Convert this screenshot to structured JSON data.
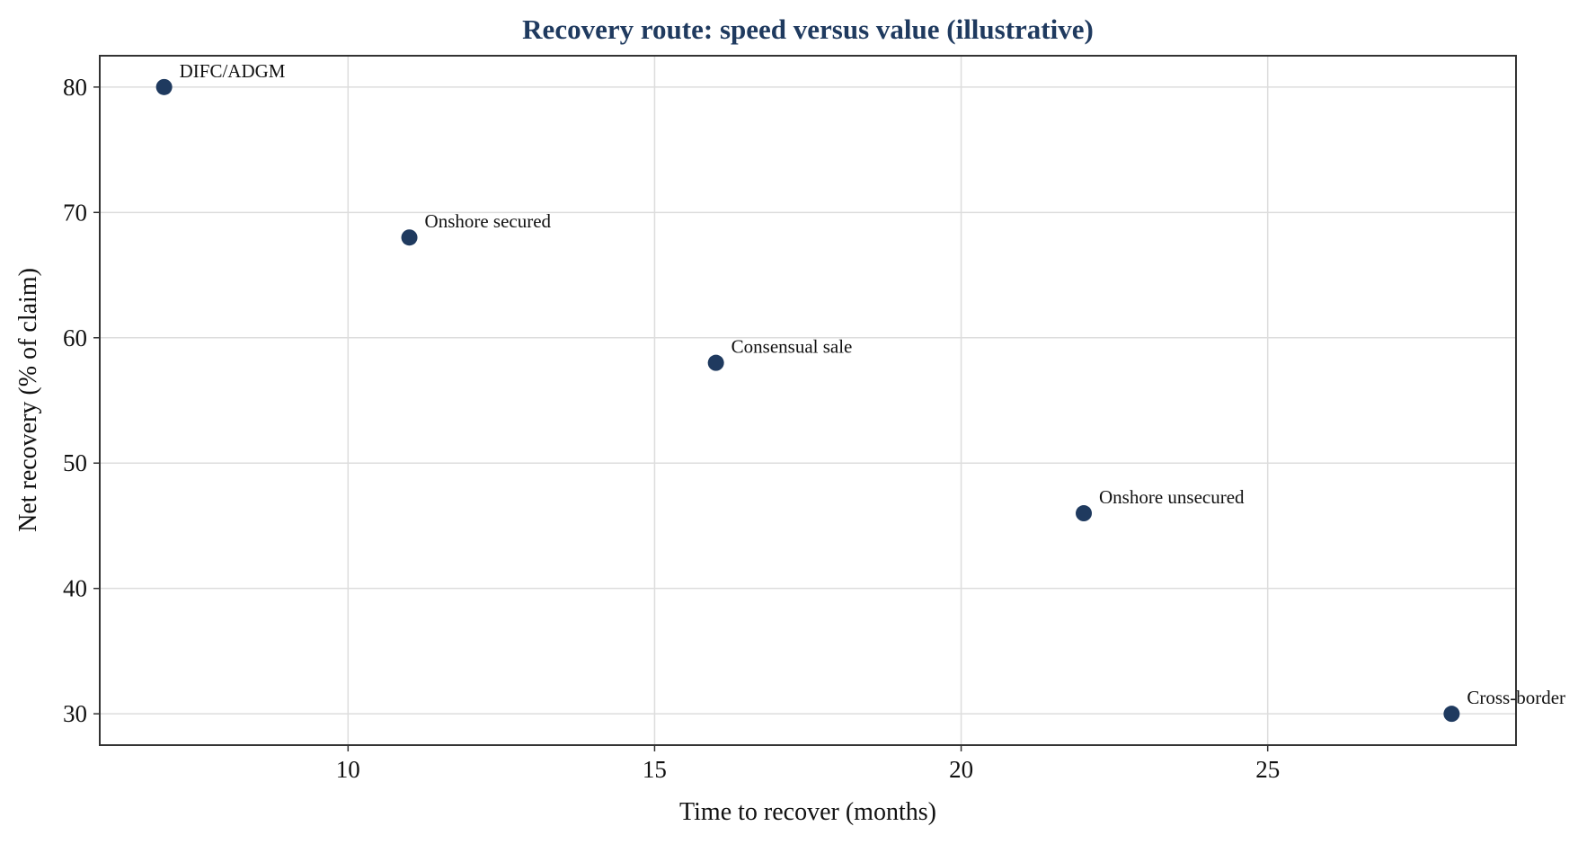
{
  "chart_data": {
    "type": "scatter",
    "title": "Recovery route: speed versus value (illustrative)",
    "xlabel": "Time to recover (months)",
    "ylabel": "Net recovery (% of claim)",
    "xlim": [
      5.95,
      29.05
    ],
    "ylim": [
      27.5,
      82.5
    ],
    "x_ticks": [
      10,
      15,
      20,
      25
    ],
    "y_ticks": [
      30,
      40,
      50,
      60,
      70,
      80
    ],
    "grid": true,
    "legend": "none",
    "points": [
      {
        "label": "DIFC/ADGM",
        "x": 7,
        "y": 80
      },
      {
        "label": "Onshore secured",
        "x": 11,
        "y": 68
      },
      {
        "label": "Consensual sale",
        "x": 16,
        "y": 58
      },
      {
        "label": "Onshore unsecured",
        "x": 22,
        "y": 46
      },
      {
        "label": "Cross-border",
        "x": 28,
        "y": 30
      }
    ],
    "colors": {
      "marker": "#1f3a5f",
      "title": "#1f3a5f",
      "grid": "#dddddd",
      "axis": "#333333",
      "text": "#111111"
    }
  }
}
